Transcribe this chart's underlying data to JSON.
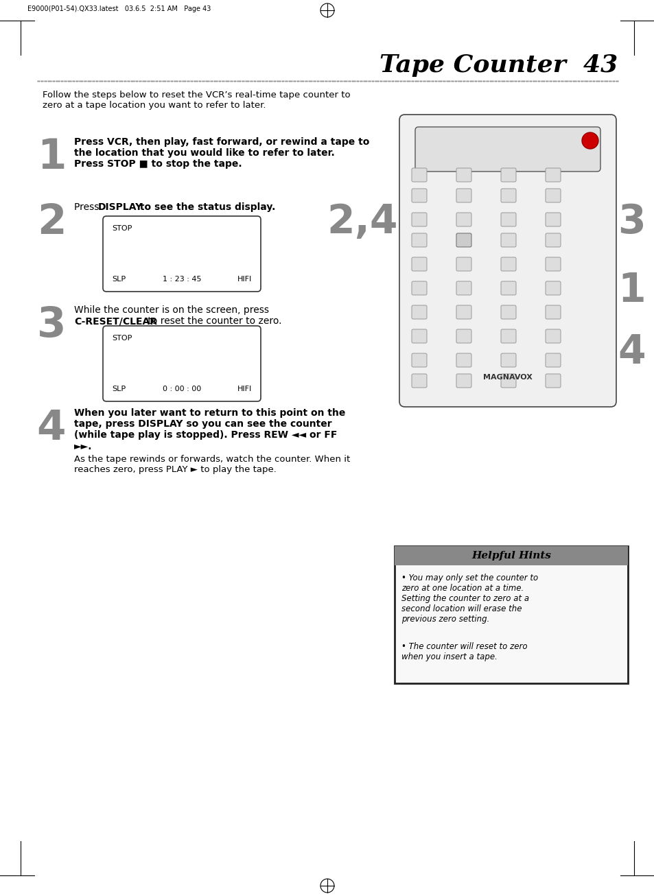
{
  "page_title": "Tape Counter  43",
  "header_text": "E9000(P01-54).QX33.latest   03.6.5  2:51 AM   Page 43",
  "dotted_line_y": 0.845,
  "intro_text": "Follow the steps below to reset the VCR’s real-time tape counter to\nzero at a tape location you want to refer to later.",
  "steps": [
    {
      "number": "1",
      "bold_text": "Press VCR, then play, fast forward, or rewind a tape to\nthe location that you would like to refer to later.\nPress STOP ■ to stop the tape."
    },
    {
      "number": "2",
      "bold_text": "Press DISPLAY to see the status display.",
      "display_box_1": {
        "top_label": "STOP",
        "bottom_left": "SLP",
        "bottom_center": "1 : 23 : 45",
        "bottom_right": "HIFI"
      }
    },
    {
      "number": "3",
      "text_before": "While the counter is on the screen, press\n",
      "bold_text": "C-RESET/CLEAR",
      "text_after": " to reset the counter to zero.",
      "display_box_2": {
        "top_label": "STOP",
        "bottom_left": "SLP",
        "bottom_center": "0 : 00 : 00",
        "bottom_right": "HIFI"
      }
    },
    {
      "number": "4",
      "bold_text": "When you later want to return to this point on the\ntape, press DISPLAY so you can see the counter\n(while tape play is stopped). Press REW ◄◄ or FF\n►►.",
      "normal_text": "As the tape rewinds or forwards, watch the counter. When it\nreaches zero, press PLAY ► to play the tape."
    }
  ],
  "helpful_hints_title": "Helpful Hints",
  "helpful_hints_bullets": [
    "You may only set the counter to\nzero at one location at a time.\nSetting the counter to zero at a\nsecond location will erase the\nprevious zero setting.",
    "The counter will reset to zero\nwhen you insert a tape."
  ],
  "bg_color": "#ffffff",
  "text_color": "#000000",
  "step_number_color": "#888888",
  "hint_box_border_color": "#000000",
  "hint_title_bg": "#aaaaaa",
  "hint_box_bg": "#f5f5f5",
  "display_box_border": "#333333",
  "dotted_line_color": "#888888"
}
